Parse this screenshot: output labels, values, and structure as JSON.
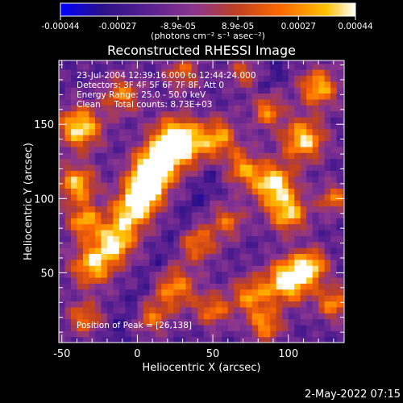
{
  "chart_data": {
    "type": "heatmap",
    "title": "Reconstructed RHESSI Image",
    "xlabel": "Heliocentric X (arcsec)",
    "ylabel": "Heliocentric Y (arcsec)",
    "xlim": [
      -52,
      137
    ],
    "ylim": [
      3,
      193
    ],
    "x_ticks": [
      "-50",
      "0",
      "50",
      "100"
    ],
    "y_ticks": [
      "50",
      "100",
      "150"
    ],
    "colorbar": {
      "range": [
        -0.00044,
        0.00044
      ],
      "tick_labels": [
        "-0.00044",
        "-0.00027",
        "-8.9e-05",
        "8.9e-05",
        "0.00027",
        "0.00044"
      ],
      "unit_label": "(photons cm⁻² s⁻¹ asec⁻²)",
      "colormap": [
        "#0000ff",
        "#2a1088",
        "#5a2090",
        "#8a3590",
        "#c04020",
        "#ff6a00",
        "#ffc000",
        "#ffffff"
      ]
    },
    "annotations": [
      "23-Jul-2004 12:39:16.000 to 12:44:24.000",
      "Detectors: 3F 4F 5F 6F 7F 8F, Att 0",
      "Energy Range: 25.0 - 50.0 keV",
      "Clean     Total counts: 8.73E+03"
    ],
    "peak_text": "Position of Peak = [26,138]",
    "peak": [
      26,
      138
    ],
    "timestamp": "2-May-2022 07:15"
  }
}
